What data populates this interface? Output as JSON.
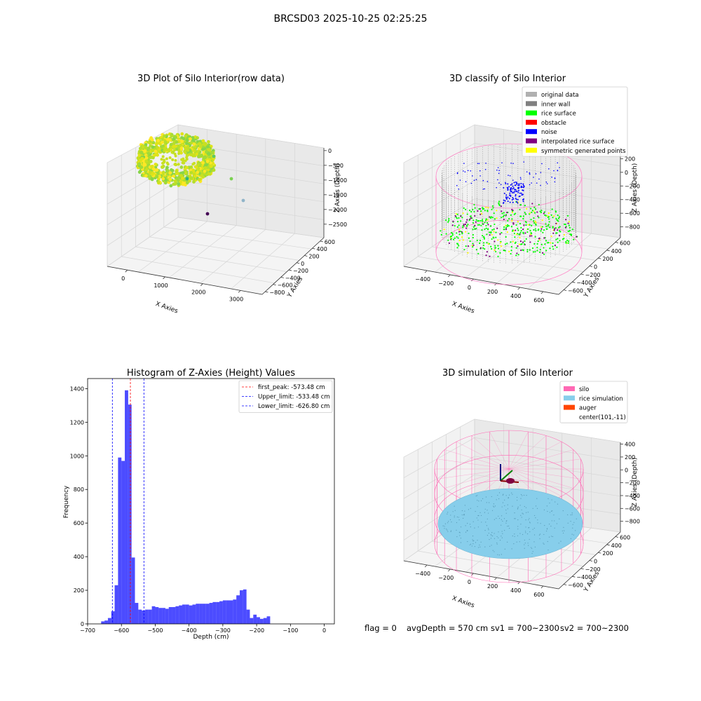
{
  "figure": {
    "suptitle": "BRCSD03 2025-10-25 02:25:25",
    "footer": {
      "flag": "flag = 0",
      "avg_depth": "avgDepth = 570 cm",
      "sv1": "sv1 = 700~2300",
      "sv2": "sv2 = 700~2300"
    }
  },
  "chart_data": [
    {
      "type": "scatter",
      "projection": "3d",
      "title": "3D Plot of Silo Interior(row data)",
      "xlabel": "X Axies",
      "ylabel": "Y Axies",
      "zlabel": "Z Axies (Depth)",
      "x_ticks": [
        "0",
        "1000",
        "2000",
        "3000"
      ],
      "y_ticks": [
        "600",
        "400",
        "200",
        "0",
        "−200",
        "−400",
        "−600",
        "−800"
      ],
      "z_ticks": [
        "0",
        "−500",
        "−1000",
        "−1500",
        "−2000",
        "−2500"
      ],
      "colormap": "viridis",
      "outliers": [
        {
          "x": 1600,
          "y": 200,
          "z": -400,
          "color": "#5dc963"
        },
        {
          "x": 2000,
          "y": 300,
          "z": -1000,
          "color": "#7ad151"
        },
        {
          "x": 2700,
          "y": 100,
          "z": -1500,
          "color": "#90b4c8"
        },
        {
          "x": 1200,
          "y": -200,
          "z": -2000,
          "color": "#2fb47c"
        },
        {
          "x": 3300,
          "y": -700,
          "z": -2600,
          "color": "#440154"
        }
      ]
    },
    {
      "type": "scatter",
      "projection": "3d",
      "title": "3D classify of Silo Interior",
      "xlabel": "X Axies",
      "ylabel": "Y Axies",
      "zlabel": "Z Axies (Depth)",
      "x_ticks": [
        "−400",
        "−200",
        "0",
        "200",
        "400",
        "600"
      ],
      "y_ticks": [
        "600",
        "400",
        "200",
        "0",
        "−200",
        "−400",
        "−600"
      ],
      "z_ticks": [
        "200",
        "0",
        "−200",
        "−400",
        "−600",
        "−800"
      ],
      "legend_location": "top-right",
      "legend": [
        {
          "label": "original data",
          "color": "#b0b0b0"
        },
        {
          "label": "inner wall",
          "color": "#808080"
        },
        {
          "label": "rice surface",
          "color": "#00ff00"
        },
        {
          "label": "obstacle",
          "color": "#ff0000"
        },
        {
          "label": "noise",
          "color": "#0000ff"
        },
        {
          "label": "interpolated rice surface",
          "color": "#800080"
        },
        {
          "label": "symmetric generated points",
          "color": "#ffff00"
        }
      ]
    },
    {
      "type": "bar",
      "title": "Histogram of Z-Axies (Height) Values",
      "xlabel": "Depth (cm)",
      "ylabel": "Frequency",
      "xlim": [
        -700,
        30
      ],
      "ylim": [
        0,
        1460
      ],
      "x_ticks": [
        -700,
        -600,
        -500,
        -400,
        -300,
        -200,
        -100,
        0
      ],
      "y_ticks": [
        0,
        200,
        400,
        600,
        800,
        1000,
        1200,
        1400
      ],
      "bar_color": "#0000ff",
      "bin_width": 10,
      "bins": [
        {
          "x": -660,
          "count": 15
        },
        {
          "x": -650,
          "count": 20
        },
        {
          "x": -640,
          "count": 35
        },
        {
          "x": -630,
          "count": 75
        },
        {
          "x": -620,
          "count": 230
        },
        {
          "x": -610,
          "count": 990
        },
        {
          "x": -600,
          "count": 970
        },
        {
          "x": -590,
          "count": 1390
        },
        {
          "x": -580,
          "count": 1305
        },
        {
          "x": -570,
          "count": 395
        },
        {
          "x": -560,
          "count": 125
        },
        {
          "x": -550,
          "count": 85
        },
        {
          "x": -540,
          "count": 80
        },
        {
          "x": -530,
          "count": 85
        },
        {
          "x": -520,
          "count": 85
        },
        {
          "x": -510,
          "count": 105
        },
        {
          "x": -500,
          "count": 100
        },
        {
          "x": -490,
          "count": 95
        },
        {
          "x": -480,
          "count": 95
        },
        {
          "x": -470,
          "count": 90
        },
        {
          "x": -460,
          "count": 100
        },
        {
          "x": -450,
          "count": 100
        },
        {
          "x": -440,
          "count": 105
        },
        {
          "x": -430,
          "count": 110
        },
        {
          "x": -420,
          "count": 115
        },
        {
          "x": -410,
          "count": 115
        },
        {
          "x": -400,
          "count": 110
        },
        {
          "x": -390,
          "count": 115
        },
        {
          "x": -380,
          "count": 120
        },
        {
          "x": -370,
          "count": 120
        },
        {
          "x": -360,
          "count": 120
        },
        {
          "x": -350,
          "count": 120
        },
        {
          "x": -340,
          "count": 125
        },
        {
          "x": -330,
          "count": 130
        },
        {
          "x": -320,
          "count": 130
        },
        {
          "x": -310,
          "count": 135
        },
        {
          "x": -300,
          "count": 140
        },
        {
          "x": -290,
          "count": 140
        },
        {
          "x": -280,
          "count": 140
        },
        {
          "x": -270,
          "count": 145
        },
        {
          "x": -260,
          "count": 170
        },
        {
          "x": -250,
          "count": 200
        },
        {
          "x": -240,
          "count": 205
        },
        {
          "x": -230,
          "count": 85
        },
        {
          "x": -220,
          "count": 35
        },
        {
          "x": -210,
          "count": 55
        },
        {
          "x": -200,
          "count": 40
        },
        {
          "x": -190,
          "count": 30
        },
        {
          "x": -180,
          "count": 35
        },
        {
          "x": -170,
          "count": 45
        }
      ],
      "vlines": [
        {
          "x": -573.48,
          "color": "#ff0000",
          "label": "first_peak: -573.48 cm"
        },
        {
          "x": -533.48,
          "color": "#0000ff",
          "label": "Upper_limit: -533.48 cm"
        },
        {
          "x": -626.8,
          "color": "#0000ff",
          "label": "Lower_limit: -626.80 cm"
        }
      ],
      "legend_location": "top-right"
    },
    {
      "type": "scatter",
      "projection": "3d",
      "title": "3D simulation of Silo Interior",
      "xlabel": "X Axies",
      "ylabel": "Y Axies",
      "zlabel": "Z Axies (Depth)",
      "x_ticks": [
        "−400",
        "−200",
        "0",
        "200",
        "400",
        "600"
      ],
      "y_ticks": [
        "600",
        "400",
        "200",
        "0",
        "−200",
        "−400",
        "−600"
      ],
      "z_ticks": [
        "400",
        "200",
        "0",
        "−200",
        "−400",
        "−600",
        "−800"
      ],
      "legend_location": "top-right",
      "legend": [
        {
          "label": "silo",
          "color": "#ff69b4"
        },
        {
          "label": "rice simulation",
          "color": "#87ceeb"
        },
        {
          "label": "auger",
          "color": "#ff4500"
        },
        {
          "label": "center(101,-11)",
          "color": ""
        }
      ]
    }
  ]
}
